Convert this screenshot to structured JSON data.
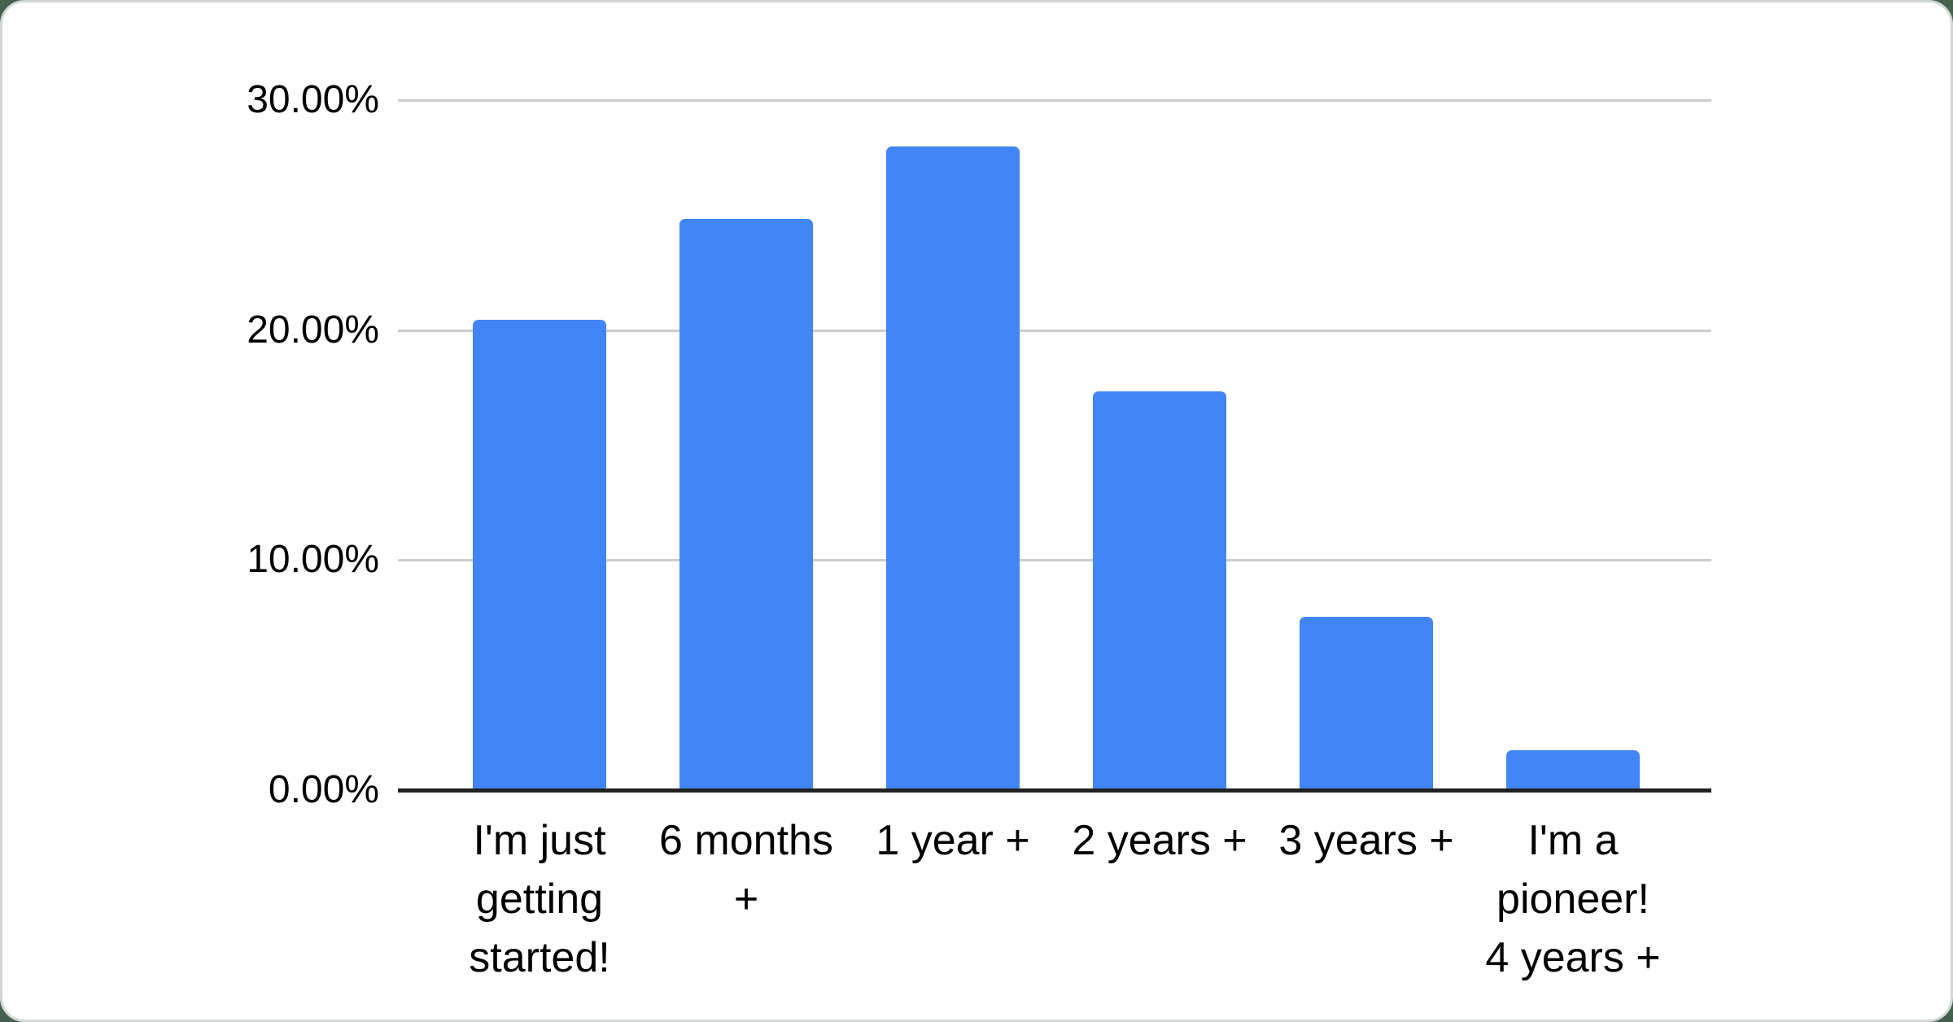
{
  "page_background": "#44604e",
  "card": {
    "background": "#ffffff",
    "border_color": "#d3d8d5"
  },
  "chart_data": {
    "type": "bar",
    "title": "",
    "categories": [
      "I'm just getting started!",
      "6 months +",
      "1 year +",
      "2 years +",
      "3 years +",
      "I'm a pioneer! 4 years +"
    ],
    "category_lines": [
      [
        "I'm just",
        "getting",
        "started!"
      ],
      [
        "6 months",
        "+"
      ],
      [
        "1 year +"
      ],
      [
        "2 years +"
      ],
      [
        "3 years +"
      ],
      [
        "I'm a",
        "pioneer!",
        "4 years +"
      ]
    ],
    "values": [
      20.45,
      24.85,
      28.0,
      17.35,
      7.55,
      1.75
    ],
    "value_unit": "%",
    "xlabel": "",
    "ylabel": "",
    "ytick_labels": [
      "30.00%",
      "20.00%",
      "10.00%",
      "0.00%"
    ],
    "ytick_values": [
      30,
      20,
      10,
      0
    ],
    "ylim": [
      0,
      30
    ],
    "grid": true,
    "legend": "none",
    "bar_color": "#4285F4",
    "gridline_color": "#cccccc",
    "axis_line_color": "#212121",
    "label_color": "#000000"
  }
}
